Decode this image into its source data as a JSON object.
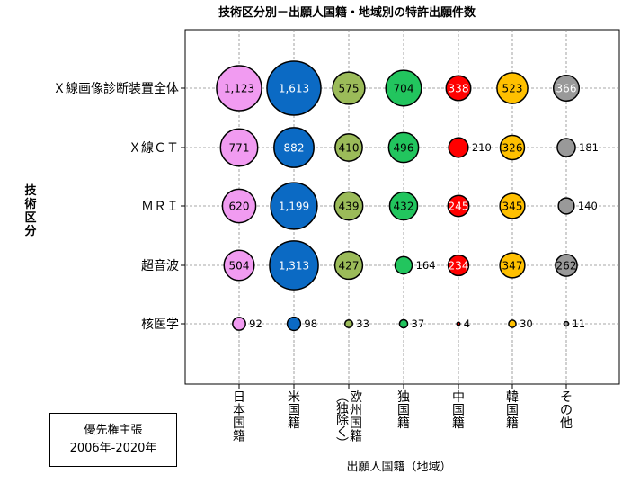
{
  "chart_data": {
    "type": "bubble",
    "title": "技術区分別－出願人国籍・地域別の特許出願件数",
    "ylabel": "技術区分",
    "xlabel": "出願人国籍（地域）",
    "rows": [
      "Ｘ線画像診断装置全体",
      "Ｘ線ＣＴ",
      "ＭＲＩ",
      "超音波",
      "核医学"
    ],
    "columns": [
      {
        "name": "日本国籍",
        "label_lines": [
          "日",
          "本",
          "国",
          "籍"
        ],
        "color": "#f19bf1"
      },
      {
        "name": "米国籍",
        "label_lines": [
          "米",
          "国",
          "籍"
        ],
        "color": "#0b6ac4"
      },
      {
        "name": "欧州国籍（独除く）",
        "label_lines": [
          "欧",
          "州",
          "国",
          "籍"
        ],
        "paren_lines": [
          "︵",
          "独",
          "除",
          "く",
          "︶"
        ],
        "color": "#9bbb59"
      },
      {
        "name": "独国籍",
        "label_lines": [
          "独",
          "国",
          "籍"
        ],
        "color": "#22c55e"
      },
      {
        "name": "中国籍",
        "label_lines": [
          "中",
          "国",
          "籍"
        ],
        "color": "#ff0000"
      },
      {
        "name": "韓国籍",
        "label_lines": [
          "韓",
          "国",
          "籍"
        ],
        "color": "#ffc000"
      },
      {
        "name": "その他",
        "label_lines": [
          "そ",
          "の",
          "他"
        ],
        "color": "#999999"
      }
    ],
    "values": [
      [
        1123,
        1613,
        575,
        704,
        338,
        523,
        366
      ],
      [
        771,
        882,
        410,
        496,
        210,
        326,
        181
      ],
      [
        620,
        1199,
        439,
        432,
        245,
        345,
        140
      ],
      [
        504,
        1313,
        427,
        164,
        234,
        347,
        262
      ],
      [
        92,
        98,
        33,
        37,
        4,
        30,
        11
      ]
    ],
    "display_labels": [
      [
        "1,123",
        "1,613",
        "575",
        "704",
        "338",
        "523",
        "366"
      ],
      [
        "771",
        "882",
        "410",
        "496",
        "210",
        "326",
        "181"
      ],
      [
        "620",
        "1,199",
        "439",
        "432",
        "245",
        "345",
        "140"
      ],
      [
        "504",
        "1,313",
        "427",
        "164",
        "234",
        "347",
        "262"
      ],
      [
        "92",
        "98",
        "33",
        "37",
        "4",
        "30",
        "11"
      ]
    ]
  },
  "note": {
    "line1": "優先権主張",
    "line2": "2006年-2020年"
  }
}
